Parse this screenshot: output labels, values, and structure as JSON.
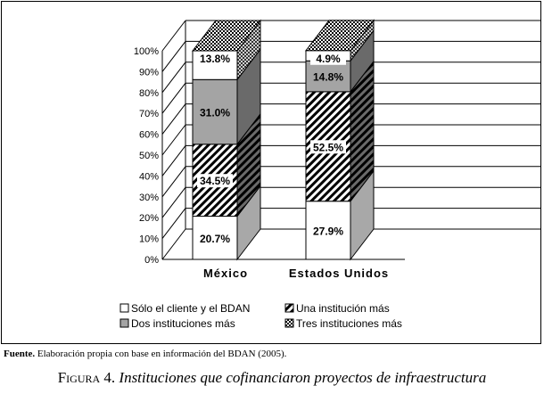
{
  "chart_data": {
    "type": "bar",
    "stacked": true,
    "three_d": true,
    "categories": [
      "México",
      "Estados Unidos"
    ],
    "y_ticks": [
      "0%",
      "10%",
      "20%",
      "30%",
      "40%",
      "50%",
      "60%",
      "70%",
      "80%",
      "90%",
      "100%"
    ],
    "ylim": [
      0,
      100
    ],
    "series": [
      {
        "name": "Sólo el cliente y el BDAN",
        "values": [
          20.7,
          27.9
        ],
        "labels": [
          "20.7%",
          "27.9%"
        ],
        "pattern": "white"
      },
      {
        "name": "Una institución más",
        "values": [
          34.5,
          52.5
        ],
        "labels": [
          "34.5%",
          "52.5%"
        ],
        "pattern": "diagonal-hatch"
      },
      {
        "name": "Dos instituciones más",
        "values": [
          31.0,
          14.8
        ],
        "labels": [
          "31.0%",
          "14.8%"
        ],
        "pattern": "gray"
      },
      {
        "name": "Tres instituciones más",
        "values": [
          13.8,
          4.9
        ],
        "labels": [
          "13.8%",
          "4.9%"
        ],
        "pattern": "checkered"
      }
    ],
    "legend_position": "bottom",
    "grid": true
  },
  "source": {
    "label": "Fuente.",
    "text": "Elaboración propia con base en información del BDAN (2005)."
  },
  "caption": {
    "prefix": "Figura 4.",
    "title": "Instituciones que cofinanciaron proyectos de infraestructura"
  }
}
